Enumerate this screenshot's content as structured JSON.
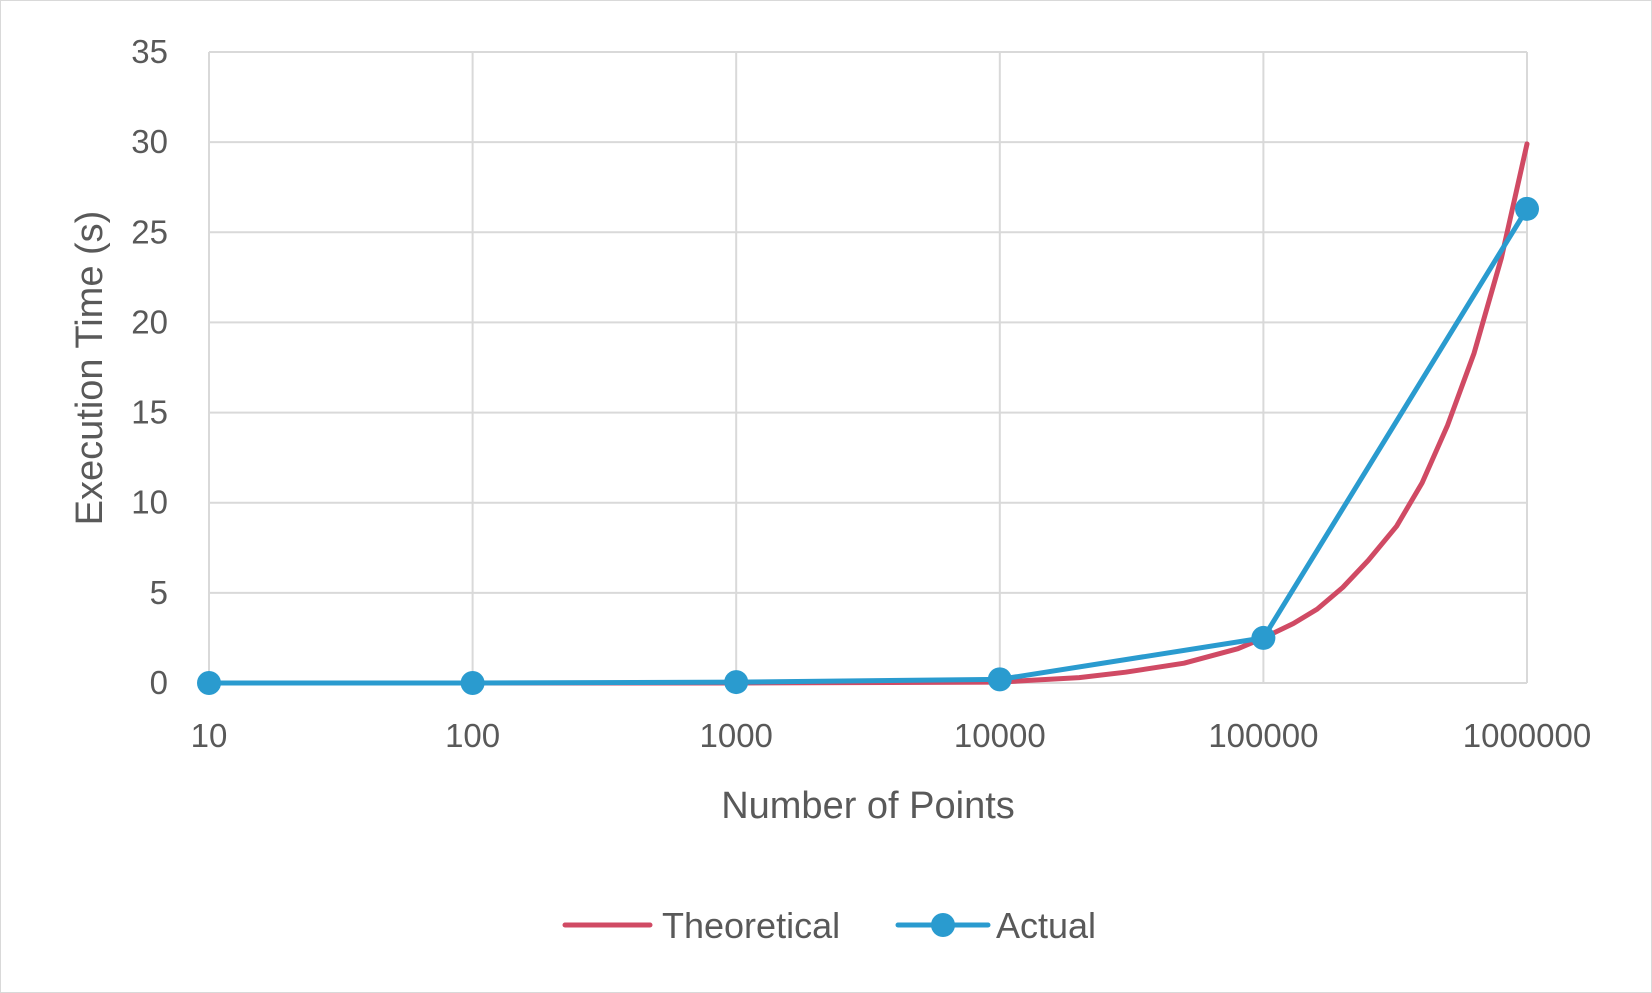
{
  "chart_data": {
    "type": "line",
    "title": "",
    "xlabel": "Number of Points",
    "ylabel": "Execution Time (s)",
    "x_scale": "log",
    "x_ticks": [
      "10",
      "100",
      "1000",
      "10000",
      "100000",
      "1000000"
    ],
    "y_ticks": [
      "0",
      "5",
      "10",
      "15",
      "20",
      "25",
      "30",
      "35"
    ],
    "ylim": [
      0,
      35
    ],
    "xlim": [
      10,
      1000000
    ],
    "grid": true,
    "legend_position": "bottom",
    "series": [
      {
        "name": "Theoretical",
        "color": "#d04a64",
        "marker": "none",
        "x": [
          10,
          100,
          1000,
          10000,
          20000,
          30000,
          50000,
          80000,
          100000,
          130000,
          160000,
          200000,
          250000,
          320000,
          400000,
          500000,
          630000,
          800000,
          1000000
        ],
        "y": [
          0,
          0,
          0,
          0.05,
          0.3,
          0.6,
          1.1,
          1.9,
          2.5,
          3.3,
          4.1,
          5.3,
          6.8,
          8.7,
          11.1,
          14.3,
          18.3,
          23.6,
          29.9
        ]
      },
      {
        "name": "Actual",
        "color": "#2a9bcf",
        "marker": "circle",
        "x": [
          10,
          100,
          1000,
          10000,
          100000,
          1000000
        ],
        "y": [
          0,
          0,
          0.05,
          0.2,
          2.5,
          26.3
        ]
      }
    ]
  }
}
